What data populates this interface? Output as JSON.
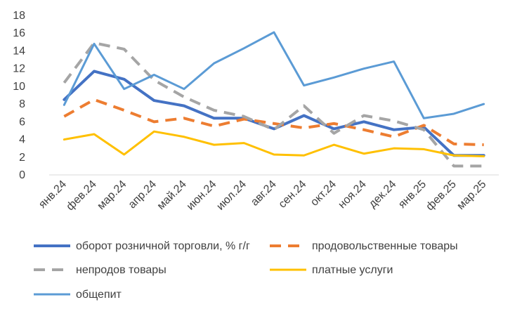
{
  "chart_data": {
    "type": "line",
    "title": "",
    "xlabel": "",
    "ylabel": "",
    "ylim": [
      0,
      18
    ],
    "yticks": [
      "0",
      "2",
      "4",
      "6",
      "8",
      "10",
      "12",
      "14",
      "16",
      "18"
    ],
    "grid": false,
    "legend_position": "bottom",
    "categories": [
      "янв.24",
      "фев.24",
      "мар.24",
      "апр.24",
      "май.24",
      "июн.24",
      "июл.24",
      "авг.24",
      "сен.24",
      "окт.24",
      "ноя.24",
      "дек.24",
      "янв.25",
      "фев.25",
      "мар.25"
    ],
    "series": [
      {
        "name": "оборот розничной торговли, % г/г",
        "color": "#4472C4",
        "dash": "solid",
        "width": "thick",
        "values": [
          8.5,
          11.7,
          10.8,
          8.4,
          7.8,
          6.4,
          6.4,
          5.2,
          6.7,
          5.2,
          6.0,
          5.1,
          5.4,
          2.2,
          2.2
        ]
      },
      {
        "name": "продовольственные товары",
        "color": "#ED7D31",
        "dash": "dashed",
        "width": "thick",
        "values": [
          6.6,
          8.5,
          7.3,
          6.0,
          6.4,
          5.5,
          6.3,
          5.8,
          5.3,
          5.8,
          5.1,
          4.3,
          5.6,
          3.5,
          3.4
        ]
      },
      {
        "name": "непродов товары",
        "color": "#A5A5A5",
        "dash": "dashed",
        "width": "thick",
        "values": [
          10.4,
          14.9,
          14.2,
          10.7,
          8.8,
          7.3,
          6.6,
          5.1,
          7.8,
          4.7,
          6.7,
          6.1,
          5.1,
          1.0,
          1.0
        ]
      },
      {
        "name": "платные услуги",
        "color": "#FFC000",
        "dash": "solid",
        "width": "normal",
        "values": [
          4.0,
          4.6,
          2.3,
          4.9,
          4.3,
          3.4,
          3.6,
          2.3,
          2.2,
          3.4,
          2.4,
          3.0,
          2.9,
          2.2,
          2.1
        ]
      },
      {
        "name": "общепит",
        "color": "#5B9BD5",
        "dash": "solid",
        "width": "normal",
        "values": [
          7.9,
          14.8,
          9.7,
          11.3,
          9.7,
          12.6,
          14.3,
          16.1,
          10.1,
          11.0,
          12.0,
          12.8,
          6.4,
          6.9,
          8.0
        ]
      }
    ]
  }
}
